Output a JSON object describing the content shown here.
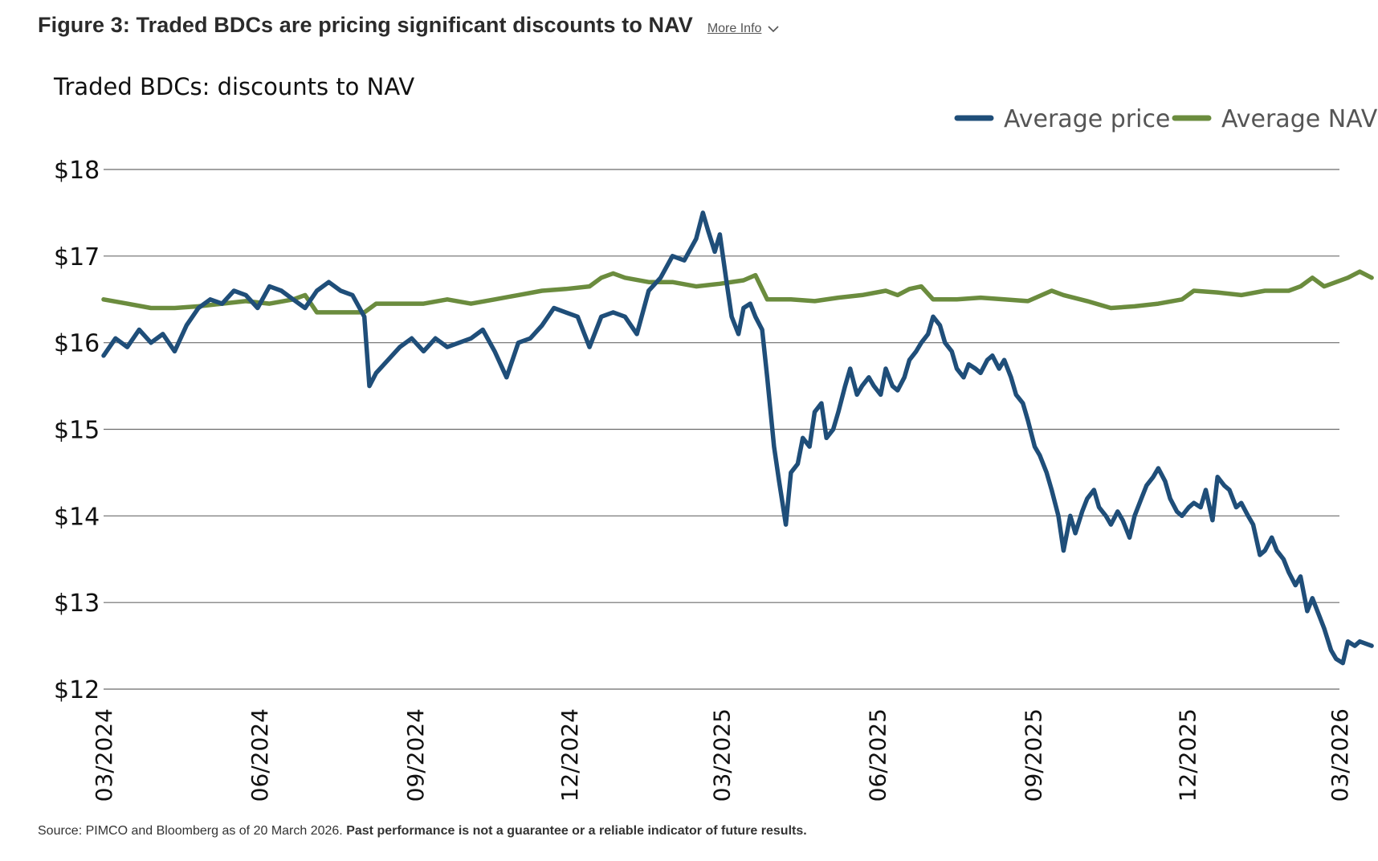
{
  "figure": {
    "title": "Figure 3: Traded BDCs are pricing significant discounts to NAV",
    "more_info_label": "More Info"
  },
  "source": {
    "text": "Source: PIMCO and Bloomberg as of 20 March 2026.",
    "disclaimer": "Past performance is not a guarantee or a reliable indicator of future results."
  },
  "chart_data": {
    "type": "line",
    "title": "Traded BDCs: discounts to NAV",
    "ylim": [
      12,
      18
    ],
    "y_ticks": [
      18,
      17,
      16,
      15,
      14,
      13,
      12
    ],
    "y_tick_labels": [
      "$18",
      "$17",
      "$16",
      "$15",
      "$14",
      "$13",
      "$12"
    ],
    "x_range": [
      "2024-03",
      "2026-03"
    ],
    "x_ticks": [
      "2024-03",
      "2024-06",
      "2024-09",
      "2024-12",
      "2025-03",
      "2025-06",
      "2025-09",
      "2025-12",
      "2026-03"
    ],
    "x_tick_labels": [
      "03/2024",
      "06/2024",
      "09/2024",
      "12/2024",
      "03/2025",
      "06/2025",
      "09/2025",
      "12/2025",
      "03/2026"
    ],
    "grid": true,
    "legend_position": "top-right",
    "series": [
      {
        "name": "Average price",
        "color": "#1f4e79",
        "points": [
          [
            "2024-03-01",
            15.85
          ],
          [
            "2024-03-08",
            16.05
          ],
          [
            "2024-03-15",
            15.95
          ],
          [
            "2024-03-22",
            16.15
          ],
          [
            "2024-03-29",
            16.0
          ],
          [
            "2024-04-05",
            16.1
          ],
          [
            "2024-04-12",
            15.9
          ],
          [
            "2024-04-19",
            16.2
          ],
          [
            "2024-04-26",
            16.4
          ],
          [
            "2024-05-03",
            16.5
          ],
          [
            "2024-05-10",
            16.45
          ],
          [
            "2024-05-17",
            16.6
          ],
          [
            "2024-05-24",
            16.55
          ],
          [
            "2024-05-31",
            16.4
          ],
          [
            "2024-06-07",
            16.65
          ],
          [
            "2024-06-14",
            16.6
          ],
          [
            "2024-06-21",
            16.5
          ],
          [
            "2024-06-28",
            16.4
          ],
          [
            "2024-07-05",
            16.6
          ],
          [
            "2024-07-12",
            16.7
          ],
          [
            "2024-07-19",
            16.6
          ],
          [
            "2024-07-26",
            16.55
          ],
          [
            "2024-08-02",
            16.3
          ],
          [
            "2024-08-05",
            15.5
          ],
          [
            "2024-08-09",
            15.65
          ],
          [
            "2024-08-16",
            15.8
          ],
          [
            "2024-08-23",
            15.95
          ],
          [
            "2024-08-30",
            16.05
          ],
          [
            "2024-09-06",
            15.9
          ],
          [
            "2024-09-13",
            16.05
          ],
          [
            "2024-09-20",
            15.95
          ],
          [
            "2024-09-27",
            16.0
          ],
          [
            "2024-10-04",
            16.05
          ],
          [
            "2024-10-11",
            16.15
          ],
          [
            "2024-10-18",
            15.9
          ],
          [
            "2024-10-25",
            15.6
          ],
          [
            "2024-11-01",
            16.0
          ],
          [
            "2024-11-08",
            16.05
          ],
          [
            "2024-11-15",
            16.2
          ],
          [
            "2024-11-22",
            16.4
          ],
          [
            "2024-11-29",
            16.35
          ],
          [
            "2024-12-06",
            16.3
          ],
          [
            "2024-12-13",
            15.95
          ],
          [
            "2024-12-20",
            16.3
          ],
          [
            "2024-12-27",
            16.35
          ],
          [
            "2025-01-03",
            16.3
          ],
          [
            "2025-01-10",
            16.1
          ],
          [
            "2025-01-17",
            16.6
          ],
          [
            "2025-01-24",
            16.75
          ],
          [
            "2025-01-31",
            17.0
          ],
          [
            "2025-02-07",
            16.95
          ],
          [
            "2025-02-14",
            17.2
          ],
          [
            "2025-02-18",
            17.5
          ],
          [
            "2025-02-21",
            17.3
          ],
          [
            "2025-02-25",
            17.05
          ],
          [
            "2025-02-28",
            17.25
          ],
          [
            "2025-03-04",
            16.7
          ],
          [
            "2025-03-07",
            16.3
          ],
          [
            "2025-03-11",
            16.1
          ],
          [
            "2025-03-14",
            16.4
          ],
          [
            "2025-03-18",
            16.45
          ],
          [
            "2025-03-21",
            16.3
          ],
          [
            "2025-03-25",
            16.15
          ],
          [
            "2025-03-28",
            15.6
          ],
          [
            "2025-04-01",
            14.8
          ],
          [
            "2025-04-04",
            14.4
          ],
          [
            "2025-04-08",
            13.9
          ],
          [
            "2025-04-11",
            14.5
          ],
          [
            "2025-04-15",
            14.6
          ],
          [
            "2025-04-18",
            14.9
          ],
          [
            "2025-04-22",
            14.8
          ],
          [
            "2025-04-25",
            15.2
          ],
          [
            "2025-04-29",
            15.3
          ],
          [
            "2025-05-02",
            14.9
          ],
          [
            "2025-05-06",
            15.0
          ],
          [
            "2025-05-09",
            15.2
          ],
          [
            "2025-05-13",
            15.5
          ],
          [
            "2025-05-16",
            15.7
          ],
          [
            "2025-05-20",
            15.4
          ],
          [
            "2025-05-23",
            15.5
          ],
          [
            "2025-05-27",
            15.6
          ],
          [
            "2025-05-30",
            15.5
          ],
          [
            "2025-06-03",
            15.4
          ],
          [
            "2025-06-06",
            15.7
          ],
          [
            "2025-06-10",
            15.5
          ],
          [
            "2025-06-13",
            15.45
          ],
          [
            "2025-06-17",
            15.6
          ],
          [
            "2025-06-20",
            15.8
          ],
          [
            "2025-06-24",
            15.9
          ],
          [
            "2025-06-27",
            16.0
          ],
          [
            "2025-07-01",
            16.1
          ],
          [
            "2025-07-04",
            16.3
          ],
          [
            "2025-07-08",
            16.2
          ],
          [
            "2025-07-11",
            16.0
          ],
          [
            "2025-07-15",
            15.9
          ],
          [
            "2025-07-18",
            15.7
          ],
          [
            "2025-07-22",
            15.6
          ],
          [
            "2025-07-25",
            15.75
          ],
          [
            "2025-07-29",
            15.7
          ],
          [
            "2025-08-01",
            15.65
          ],
          [
            "2025-08-05",
            15.8
          ],
          [
            "2025-08-08",
            15.85
          ],
          [
            "2025-08-12",
            15.7
          ],
          [
            "2025-08-15",
            15.8
          ],
          [
            "2025-08-19",
            15.6
          ],
          [
            "2025-08-22",
            15.4
          ],
          [
            "2025-08-26",
            15.3
          ],
          [
            "2025-08-29",
            15.1
          ],
          [
            "2025-09-02",
            14.8
          ],
          [
            "2025-09-05",
            14.7
          ],
          [
            "2025-09-09",
            14.5
          ],
          [
            "2025-09-12",
            14.3
          ],
          [
            "2025-09-16",
            14.0
          ],
          [
            "2025-09-19",
            13.6
          ],
          [
            "2025-09-23",
            14.0
          ],
          [
            "2025-09-26",
            13.8
          ],
          [
            "2025-09-30",
            14.05
          ],
          [
            "2025-10-03",
            14.2
          ],
          [
            "2025-10-07",
            14.3
          ],
          [
            "2025-10-10",
            14.1
          ],
          [
            "2025-10-14",
            14.0
          ],
          [
            "2025-10-17",
            13.9
          ],
          [
            "2025-10-21",
            14.05
          ],
          [
            "2025-10-24",
            13.95
          ],
          [
            "2025-10-28",
            13.75
          ],
          [
            "2025-10-31",
            14.0
          ],
          [
            "2025-11-04",
            14.2
          ],
          [
            "2025-11-07",
            14.35
          ],
          [
            "2025-11-11",
            14.45
          ],
          [
            "2025-11-14",
            14.55
          ],
          [
            "2025-11-18",
            14.4
          ],
          [
            "2025-11-21",
            14.2
          ],
          [
            "2025-11-25",
            14.05
          ],
          [
            "2025-11-28",
            14.0
          ],
          [
            "2025-12-02",
            14.1
          ],
          [
            "2025-12-05",
            14.15
          ],
          [
            "2025-12-09",
            14.1
          ],
          [
            "2025-12-12",
            14.3
          ],
          [
            "2025-12-16",
            13.95
          ],
          [
            "2025-12-19",
            14.45
          ],
          [
            "2025-12-23",
            14.35
          ],
          [
            "2025-12-26",
            14.3
          ],
          [
            "2025-12-30",
            14.1
          ],
          [
            "2026-01-02",
            14.15
          ],
          [
            "2026-01-06",
            14.0
          ],
          [
            "2026-01-09",
            13.9
          ],
          [
            "2026-01-13",
            13.55
          ],
          [
            "2026-01-16",
            13.6
          ],
          [
            "2026-01-20",
            13.75
          ],
          [
            "2026-01-23",
            13.6
          ],
          [
            "2026-01-27",
            13.5
          ],
          [
            "2026-01-30",
            13.35
          ],
          [
            "2026-02-03",
            13.2
          ],
          [
            "2026-02-06",
            13.3
          ],
          [
            "2026-02-10",
            12.9
          ],
          [
            "2026-02-13",
            13.05
          ],
          [
            "2026-02-17",
            12.85
          ],
          [
            "2026-02-20",
            12.7
          ],
          [
            "2026-02-24",
            12.45
          ],
          [
            "2026-02-27",
            12.35
          ],
          [
            "2026-03-03",
            12.3
          ],
          [
            "2026-03-06",
            12.55
          ],
          [
            "2026-03-10",
            12.5
          ],
          [
            "2026-03-13",
            12.55
          ],
          [
            "2026-03-20",
            12.5
          ]
        ]
      },
      {
        "name": "Average NAV",
        "color": "#6b8c3e",
        "points": [
          [
            "2024-03-01",
            16.5
          ],
          [
            "2024-03-15",
            16.45
          ],
          [
            "2024-03-29",
            16.4
          ],
          [
            "2024-04-12",
            16.4
          ],
          [
            "2024-04-26",
            16.42
          ],
          [
            "2024-05-10",
            16.45
          ],
          [
            "2024-05-24",
            16.48
          ],
          [
            "2024-06-07",
            16.45
          ],
          [
            "2024-06-21",
            16.5
          ],
          [
            "2024-06-28",
            16.55
          ],
          [
            "2024-07-05",
            16.35
          ],
          [
            "2024-07-19",
            16.35
          ],
          [
            "2024-08-02",
            16.35
          ],
          [
            "2024-08-09",
            16.45
          ],
          [
            "2024-08-23",
            16.45
          ],
          [
            "2024-09-06",
            16.45
          ],
          [
            "2024-09-20",
            16.5
          ],
          [
            "2024-10-04",
            16.45
          ],
          [
            "2024-10-18",
            16.5
          ],
          [
            "2024-11-01",
            16.55
          ],
          [
            "2024-11-15",
            16.6
          ],
          [
            "2024-11-29",
            16.62
          ],
          [
            "2024-12-13",
            16.65
          ],
          [
            "2024-12-20",
            16.75
          ],
          [
            "2024-12-27",
            16.8
          ],
          [
            "2025-01-03",
            16.75
          ],
          [
            "2025-01-17",
            16.7
          ],
          [
            "2025-01-31",
            16.7
          ],
          [
            "2025-02-14",
            16.65
          ],
          [
            "2025-02-28",
            16.68
          ],
          [
            "2025-03-14",
            16.72
          ],
          [
            "2025-03-21",
            16.78
          ],
          [
            "2025-03-28",
            16.5
          ],
          [
            "2025-04-11",
            16.5
          ],
          [
            "2025-04-25",
            16.48
          ],
          [
            "2025-05-09",
            16.52
          ],
          [
            "2025-05-23",
            16.55
          ],
          [
            "2025-06-06",
            16.6
          ],
          [
            "2025-06-13",
            16.55
          ],
          [
            "2025-06-20",
            16.62
          ],
          [
            "2025-06-27",
            16.65
          ],
          [
            "2025-07-04",
            16.5
          ],
          [
            "2025-07-18",
            16.5
          ],
          [
            "2025-08-01",
            16.52
          ],
          [
            "2025-08-15",
            16.5
          ],
          [
            "2025-08-29",
            16.48
          ],
          [
            "2025-09-12",
            16.6
          ],
          [
            "2025-09-19",
            16.55
          ],
          [
            "2025-10-03",
            16.48
          ],
          [
            "2025-10-17",
            16.4
          ],
          [
            "2025-10-31",
            16.42
          ],
          [
            "2025-11-14",
            16.45
          ],
          [
            "2025-11-28",
            16.5
          ],
          [
            "2025-12-05",
            16.6
          ],
          [
            "2025-12-19",
            16.58
          ],
          [
            "2026-01-02",
            16.55
          ],
          [
            "2026-01-16",
            16.6
          ],
          [
            "2026-01-30",
            16.6
          ],
          [
            "2026-02-06",
            16.65
          ],
          [
            "2026-02-13",
            16.75
          ],
          [
            "2026-02-20",
            16.65
          ],
          [
            "2026-02-27",
            16.7
          ],
          [
            "2026-03-06",
            16.75
          ],
          [
            "2026-03-13",
            16.82
          ],
          [
            "2026-03-20",
            16.75
          ]
        ]
      }
    ]
  }
}
